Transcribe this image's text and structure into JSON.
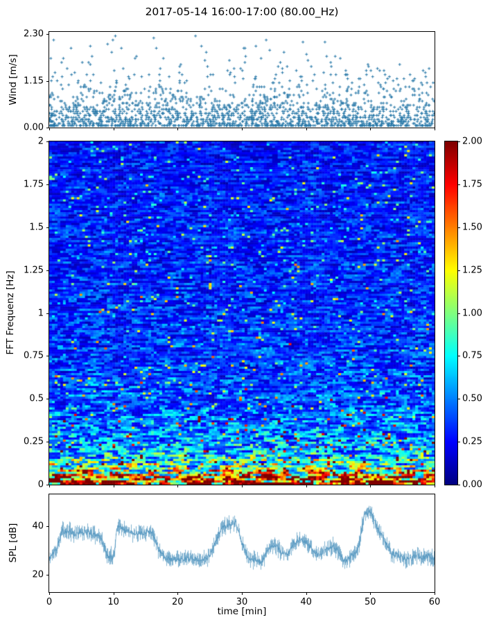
{
  "title": "2017-05-14 16:00-17:00 (80.00_Hz)",
  "wind_axis": {
    "ylabel": "Wind [m/s]",
    "yticks": [
      {
        "label": "2.30",
        "pos": 0.021
      },
      {
        "label": "1.15",
        "pos": 0.511
      },
      {
        "label": "0.00",
        "pos": 1.0
      }
    ]
  },
  "fft_axis": {
    "ylabel": "FFT Frequenz [Hz]",
    "yticks": [
      {
        "label": "2",
        "pos": 0.0
      },
      {
        "label": "1.75",
        "pos": 0.125
      },
      {
        "label": "1.5",
        "pos": 0.25
      },
      {
        "label": "1.25",
        "pos": 0.375
      },
      {
        "label": "1",
        "pos": 0.5
      },
      {
        "label": "0.75",
        "pos": 0.625
      },
      {
        "label": "0.5",
        "pos": 0.75
      },
      {
        "label": "0.25",
        "pos": 0.875
      },
      {
        "label": "0",
        "pos": 1.0
      }
    ]
  },
  "colorbar": {
    "zmin": 0.0,
    "zmax": 2.0,
    "colormap": "jet",
    "ticks": [
      {
        "label": "2.00",
        "pos": 0.0
      },
      {
        "label": "1.75",
        "pos": 0.125
      },
      {
        "label": "1.50",
        "pos": 0.25
      },
      {
        "label": "1.25",
        "pos": 0.375
      },
      {
        "label": "1.00",
        "pos": 0.5
      },
      {
        "label": "0.75",
        "pos": 0.625
      },
      {
        "label": "0.50",
        "pos": 0.75
      },
      {
        "label": "0.25",
        "pos": 0.875
      },
      {
        "label": "0.00",
        "pos": 1.0
      }
    ]
  },
  "spl_axis": {
    "ylabel": "SPL [dB]",
    "xlabel": "time [min]",
    "yticks": [
      {
        "label": "40",
        "pos": 0.325
      },
      {
        "label": "20",
        "pos": 0.825
      }
    ],
    "xticks": [
      {
        "label": "0",
        "pos": 0.0
      },
      {
        "label": "10",
        "pos": 0.1667
      },
      {
        "label": "20",
        "pos": 0.3333
      },
      {
        "label": "30",
        "pos": 0.5
      },
      {
        "label": "40",
        "pos": 0.6667
      },
      {
        "label": "50",
        "pos": 0.8333
      },
      {
        "label": "60",
        "pos": 1.0
      }
    ]
  },
  "chart_data": [
    {
      "type": "scatter",
      "name": "wind-speed",
      "ylabel": "Wind [m/s]",
      "xlim": [
        0,
        60
      ],
      "ylim": [
        0,
        2.35
      ],
      "marker": "+",
      "color": "#2878a8",
      "n_points": 1900,
      "y_quantize_step": 0.05,
      "y_exp_mean": 0.45,
      "y_min": 0.05,
      "y_max": 2.3,
      "seed": 7,
      "note": "wind speed samples over 60 min, quantized levels; dense band 0.05-0.9 m/s, sparse tail to 2.25 m/s"
    },
    {
      "type": "heatmap",
      "name": "fft-spectrogram",
      "ylabel": "FFT Frequenz [Hz]",
      "xlim": [
        0,
        60
      ],
      "ylim": [
        0,
        2
      ],
      "zlim": [
        0,
        2
      ],
      "colormap": "jet",
      "cols": 140,
      "rows": 160,
      "seed": 11,
      "freq_profile": [
        {
          "f": 0.0,
          "mean": 2.0
        },
        {
          "f": 0.03,
          "mean": 1.7
        },
        {
          "f": 0.06,
          "mean": 1.3
        },
        {
          "f": 0.1,
          "mean": 0.9
        },
        {
          "f": 0.15,
          "mean": 0.75
        },
        {
          "f": 0.2,
          "mean": 0.6
        },
        {
          "f": 0.3,
          "mean": 0.5
        },
        {
          "f": 0.5,
          "mean": 0.4
        },
        {
          "f": 0.75,
          "mean": 0.35
        },
        {
          "f": 1.0,
          "mean": 0.33
        },
        {
          "f": 1.5,
          "mean": 0.3
        },
        {
          "f": 2.0,
          "mean": 0.28
        }
      ],
      "noise": {
        "min_factor": 0.35,
        "span": 1.3,
        "spike_prob": 0.05,
        "spike_gain": 2.6
      },
      "note": "broadband noise spectrogram: intense red band below 0.1 Hz, green/yellow 0.1-0.3 Hz, blue speckled field above"
    },
    {
      "type": "line",
      "name": "spl",
      "ylabel": "SPL [dB]",
      "xlabel": "time [min]",
      "xlim": [
        0,
        60
      ],
      "ylim": [
        13,
        53
      ],
      "color": "#3585b5",
      "noise_amp": 3.5,
      "seed": 3,
      "x": [
        0,
        1,
        2,
        4,
        6,
        8,
        9,
        10,
        10.5,
        12,
        14,
        16,
        17,
        18,
        20,
        22,
        24,
        25,
        26,
        27,
        28,
        29,
        30,
        31,
        32,
        33,
        34,
        35,
        36,
        37,
        38,
        39,
        40,
        41,
        42,
        43,
        44,
        45,
        46,
        47,
        48,
        49,
        50,
        51,
        52,
        53,
        54,
        55,
        56,
        57,
        58,
        59,
        60
      ],
      "y": [
        27,
        30,
        38,
        37,
        38,
        35,
        28,
        27,
        40,
        38,
        37,
        38,
        30,
        27,
        26,
        27,
        26,
        28,
        35,
        40,
        40,
        42,
        33,
        27,
        26,
        25,
        30,
        32,
        30,
        28,
        33,
        35,
        33,
        30,
        28,
        30,
        32,
        30,
        25,
        28,
        30,
        45,
        46,
        40,
        35,
        30,
        28,
        27,
        26,
        28,
        27,
        28,
        26
      ]
    }
  ]
}
